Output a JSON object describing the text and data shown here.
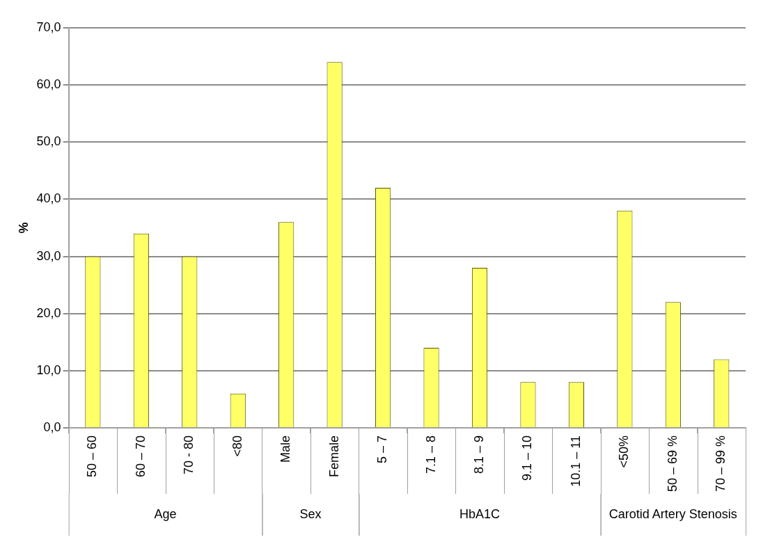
{
  "chart_data": {
    "type": "bar",
    "ylabel": "%",
    "categories": [
      "50 – 60",
      "60 – 70",
      "70 - 80",
      "<80",
      "Male",
      "Female",
      "5 – 7",
      "7.1 – 8",
      "8.1 – 9",
      "9.1 – 10",
      "10.1 – 11",
      "<50%",
      "50 – 69 %",
      "70 – 99 %"
    ],
    "values": [
      30,
      34,
      30,
      6,
      36,
      64,
      42,
      14,
      28,
      8,
      8,
      38,
      22,
      12
    ],
    "color": "#ffff66",
    "ylim": [
      0,
      70
    ],
    "yticks": [
      {
        "value": 0,
        "label": "0,0"
      },
      {
        "value": 10,
        "label": "10,0"
      },
      {
        "value": 20,
        "label": "20,0"
      },
      {
        "value": 30,
        "label": "30,0"
      },
      {
        "value": 40,
        "label": "40,0"
      },
      {
        "value": 50,
        "label": "50,0"
      },
      {
        "value": 60,
        "label": "60,0"
      },
      {
        "value": 70,
        "label": "70,0"
      }
    ],
    "annotations": [
      "Age",
      "Sex",
      "HbA1C",
      "Carotid Artery Stenosis"
    ],
    "grid": "y",
    "legend": false
  }
}
